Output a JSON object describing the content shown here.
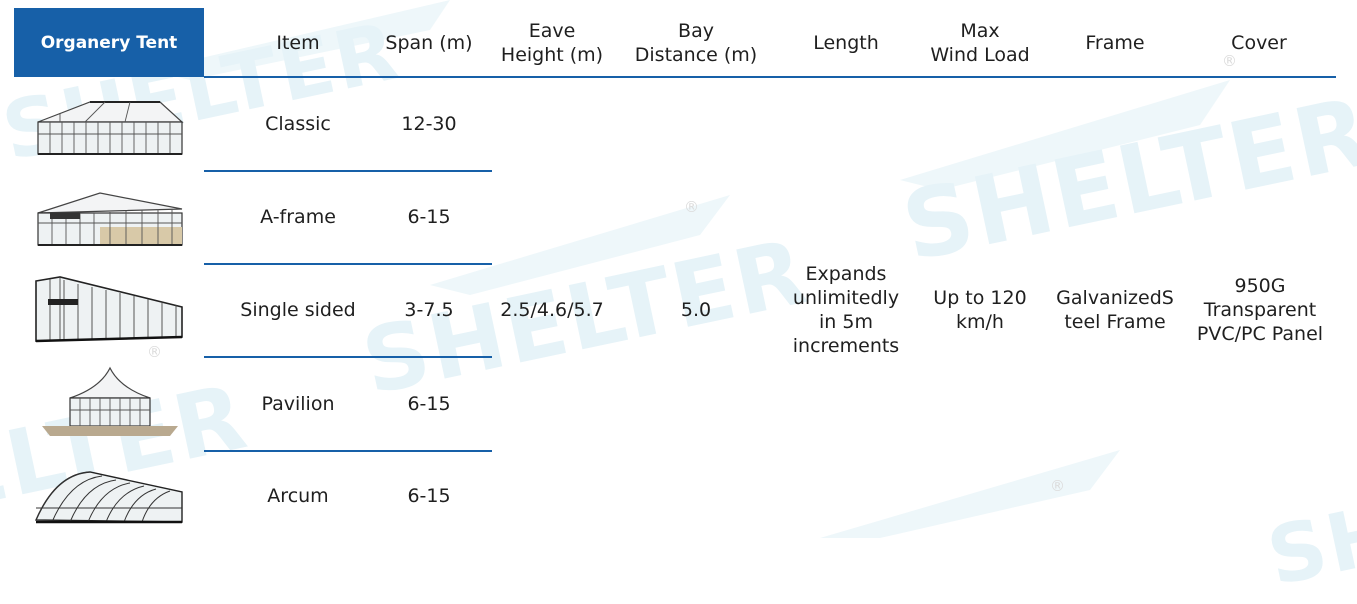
{
  "header": {
    "brand": "Organery Tent",
    "columns": [
      "Item",
      "Span (m)",
      "Eave\nHeight (m)",
      "Bay\nDistance (m)",
      "Length",
      "Max\nWind Load",
      "Frame",
      "Cover"
    ]
  },
  "rows": [
    {
      "item": "Classic",
      "span": "12-30",
      "thumbnail_icon": "classic-glass-tent-icon"
    },
    {
      "item": "A-frame",
      "span": "6-15",
      "thumbnail_icon": "a-frame-glass-tent-icon"
    },
    {
      "item": "Single sided",
      "span": "3-7.5",
      "thumbnail_icon": "single-sided-glass-tent-icon"
    },
    {
      "item": "Pavilion",
      "span": "6-15",
      "thumbnail_icon": "pavilion-glass-tent-icon"
    },
    {
      "item": "Arcum",
      "span": "6-15",
      "thumbnail_icon": "arcum-glass-tent-icon"
    }
  ],
  "shared": {
    "eave_height": "2.5/4.6/5.7",
    "bay_distance": "5.0",
    "length": "Expands\nunlimitedly\nin 5m\nincrements",
    "max_wind_load": "Up to 120\nkm/h",
    "frame": "GalvanizedS\nteel Frame",
    "cover": "950G\nTransparent\nPVC/PC Panel"
  },
  "watermark": {
    "text": "SHELTER",
    "mark": "®"
  },
  "colors": {
    "brand_blue": "#1760a8",
    "watermark": "#e6f3f8",
    "text": "#1f1f1f"
  }
}
